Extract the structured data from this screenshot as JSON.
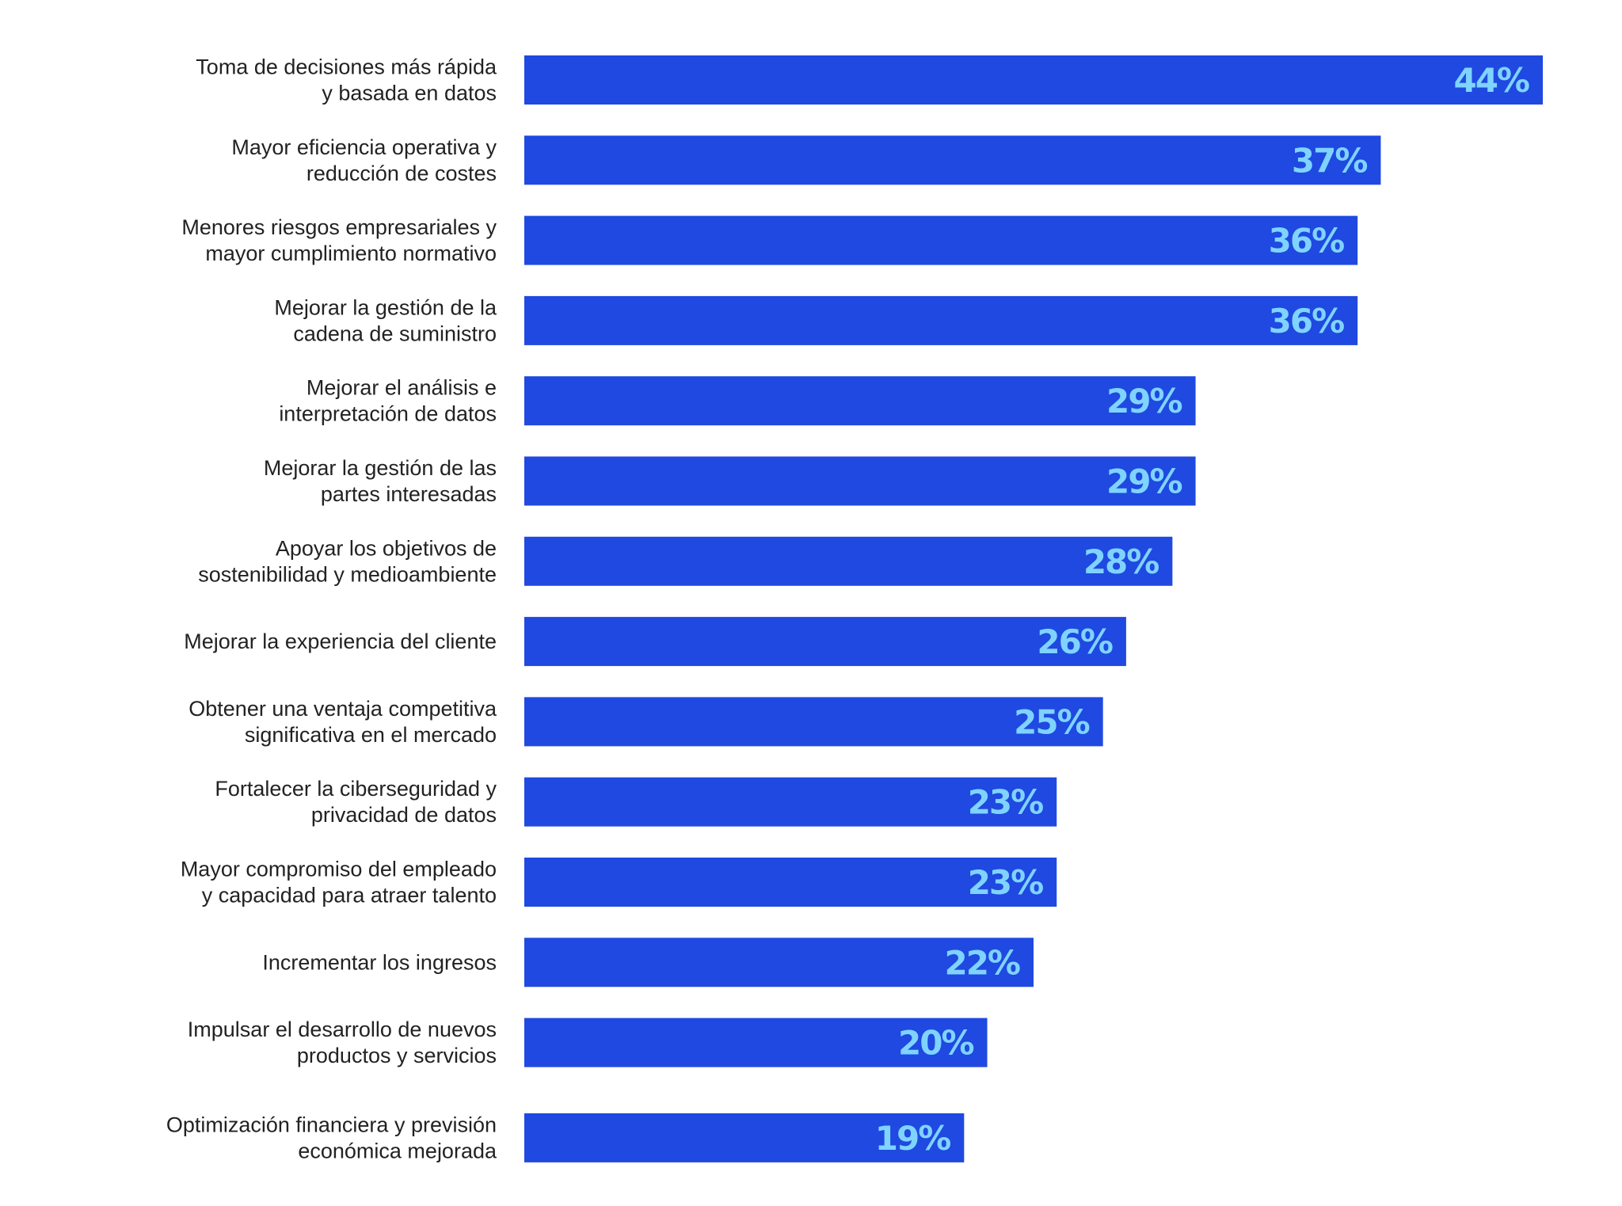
{
  "chart_data": {
    "type": "bar",
    "orientation": "horizontal",
    "title": "",
    "xlabel": "",
    "ylabel": "",
    "xlim": [
      0,
      44
    ],
    "grid": false,
    "legend": "none",
    "bar_color": "#1f49e0",
    "value_label_color": "#7fd3ff",
    "category_label_color": "#222222",
    "categories": [
      [
        "Toma de decisiones más rápida",
        "y basada en datos"
      ],
      [
        "Mayor eficiencia operativa y",
        "reducción de costes"
      ],
      [
        "Menores riesgos empresariales y",
        "mayor cumplimiento normativo"
      ],
      [
        "Mejorar la gestión de la",
        "cadena de suministro"
      ],
      [
        "Mejorar el análisis e",
        "interpretación de datos"
      ],
      [
        "Mejorar la gestión de las",
        "partes interesadas"
      ],
      [
        "Apoyar los objetivos de",
        "sostenibilidad y medioambiente"
      ],
      [
        "Mejorar la experiencia del cliente"
      ],
      [
        "Obtener una ventaja competitiva",
        "significativa en el mercado"
      ],
      [
        "Fortalecer la ciberseguridad y",
        "privacidad de datos"
      ],
      [
        "Mayor compromiso del empleado",
        "y capacidad para atraer talento"
      ],
      [
        "Incrementar los ingresos"
      ],
      [
        "Impulsar el desarrollo de nuevos",
        "productos y servicios"
      ],
      [
        "Optimización financiera y previsión",
        "económica mejorada"
      ]
    ],
    "values": [
      44,
      37,
      36,
      36,
      29,
      29,
      28,
      26,
      25,
      23,
      23,
      22,
      20,
      19
    ],
    "value_labels": [
      "44%",
      "37%",
      "36%",
      "36%",
      "29%",
      "29%",
      "28%",
      "26%",
      "25%",
      "23%",
      "23%",
      "22%",
      "20%",
      "19%"
    ]
  }
}
